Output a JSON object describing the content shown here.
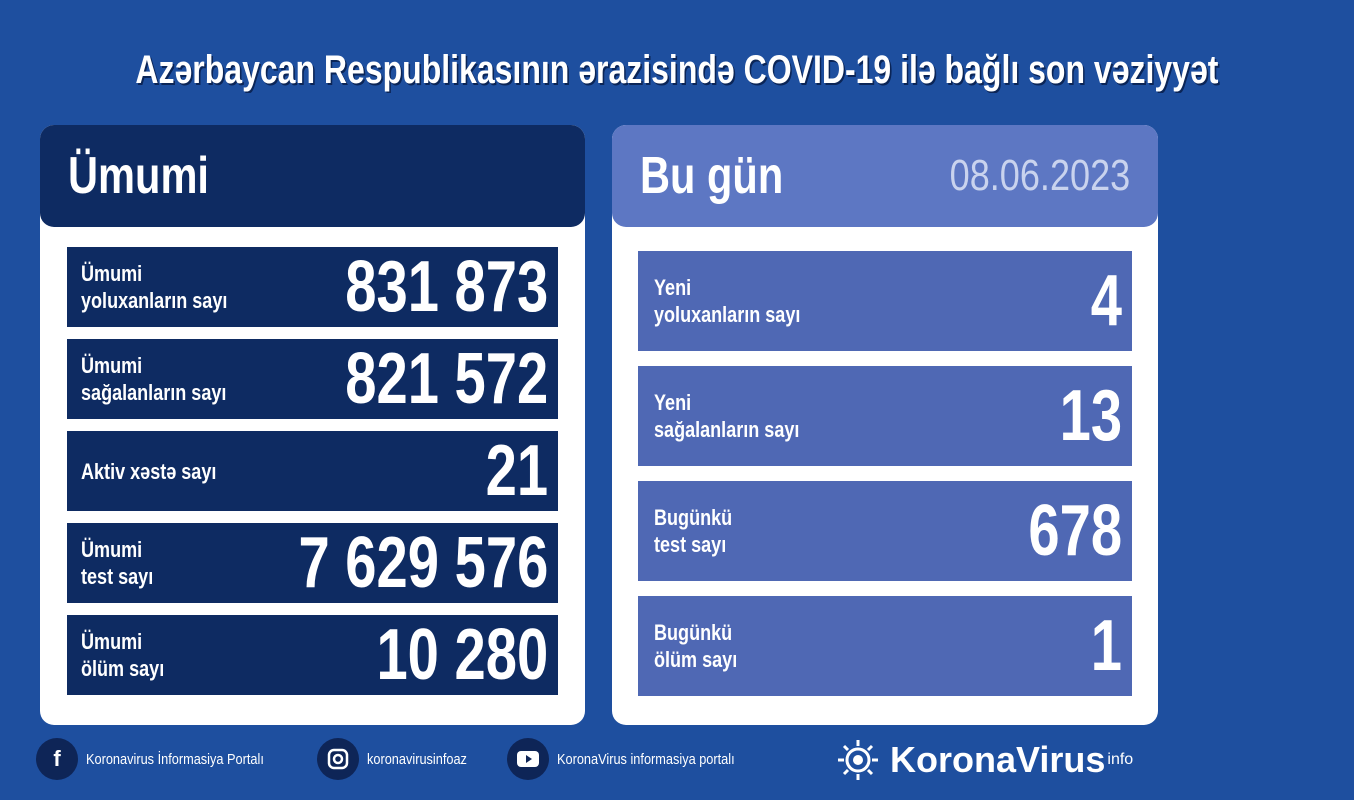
{
  "title": "Azərbaycan Respublikasının ərazisində COVID-19 ilə bağlı son vəziyyət",
  "colors": {
    "background": "#1e4f9f",
    "left_dark": "#0e2b62",
    "right_header": "#5d77c3",
    "right_rows": "#4f68b4"
  },
  "total": {
    "heading": "Ümumi",
    "rows": [
      {
        "label": "Ümumi\nyoluxanların sayı",
        "value": "831 873"
      },
      {
        "label": "Ümumi\nsağalanların sayı",
        "value": "821 572"
      },
      {
        "label": "Aktiv xəstə sayı",
        "value": "21"
      },
      {
        "label": "Ümumi\ntest sayı",
        "value": "7 629 576"
      },
      {
        "label": "Ümumi\nölüm sayı",
        "value": "10 280"
      }
    ]
  },
  "today": {
    "heading": "Bu gün",
    "date": "08.06.2023",
    "rows": [
      {
        "label": "Yeni\nyoluxanların sayı",
        "value": "4"
      },
      {
        "label": "Yeni\nsağalanların sayı",
        "value": "13"
      },
      {
        "label": "Bugünkü\ntest sayı",
        "value": "678"
      },
      {
        "label": "Bugünkü\nölüm sayı",
        "value": "1"
      }
    ]
  },
  "footer": [
    {
      "icon": "facebook-icon",
      "text": "Koronavirus İnformasiya Portalı"
    },
    {
      "icon": "instagram-icon",
      "text": "koronavirusinfoaz"
    },
    {
      "icon": "youtube-icon",
      "text": "KoronaVirus informasiya portalı"
    }
  ],
  "logo": {
    "name": "KoronaVirus",
    "suffix": "info"
  }
}
